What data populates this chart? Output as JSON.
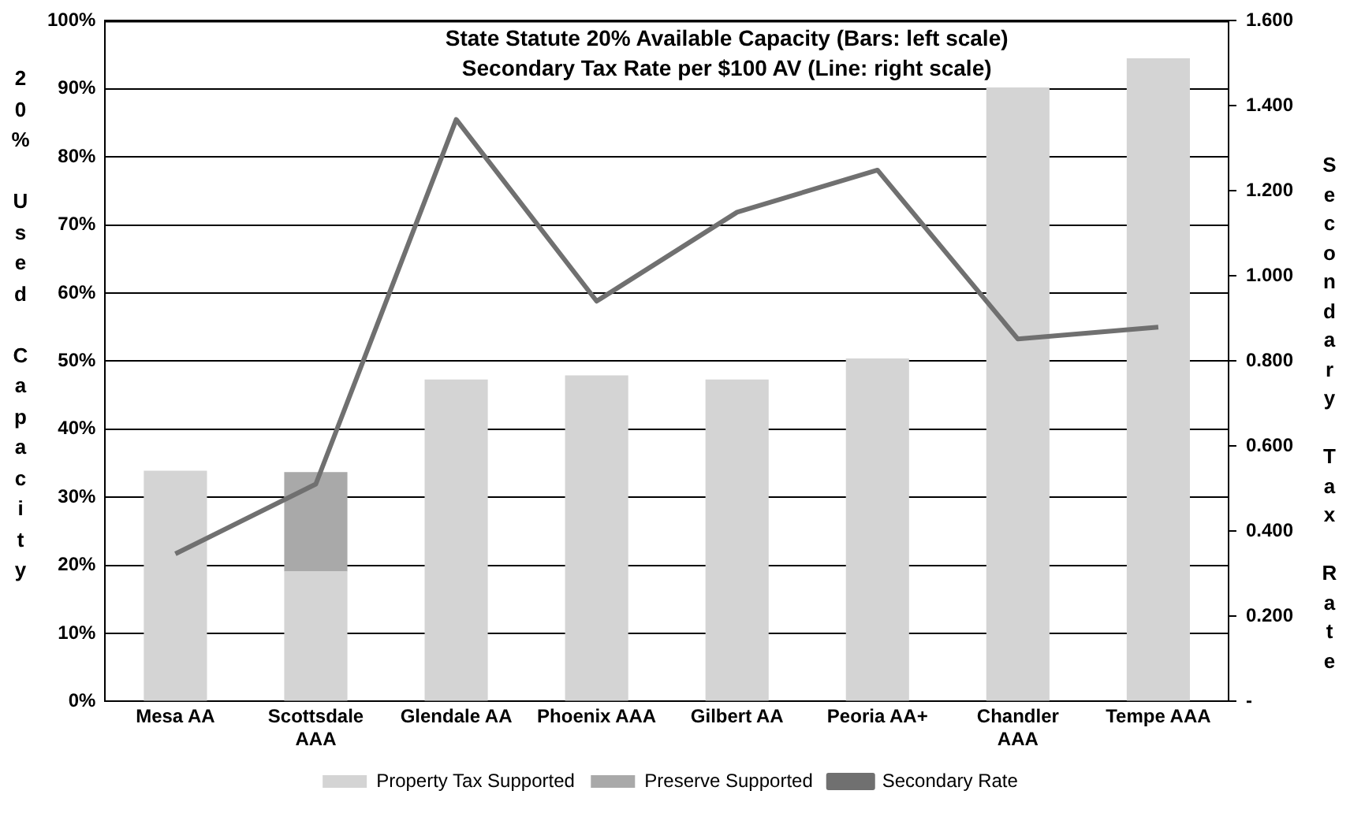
{
  "chart_data": {
    "type": "bar",
    "stacked": true,
    "title": "State Statute 20% Available Capacity (Bars: left scale)",
    "subtitle": "Secondary Tax Rate per $100 AV (Line: right scale)",
    "ylabel": "20% Used Capacity",
    "y2label": "Secondary Tax Rate",
    "categories": [
      "Mesa AA",
      "Scottsdale\nAAA",
      "Glendale AA",
      "Phoenix AAA",
      "Gilbert AA",
      "Peoria AA+",
      "Chandler\nAAA",
      "Tempe AAA"
    ],
    "series": [
      {
        "name": "Property Tax Supported",
        "color": "#d4d4d4",
        "values": [
          33.9,
          19.1,
          47.3,
          47.9,
          47.3,
          50.4,
          90.2,
          94.5
        ]
      },
      {
        "name": "Preserve Supported",
        "color": "#a9a9a9",
        "values": [
          0,
          14.6,
          0,
          0,
          0,
          0,
          0,
          0
        ]
      },
      {
        "name": "Secondary Rate",
        "type": "line",
        "axis": "y2",
        "color": "#707070",
        "values": [
          0.347,
          0.511,
          1.368,
          0.941,
          1.15,
          1.249,
          0.852,
          0.88
        ]
      }
    ],
    "ylim": [
      0,
      100
    ],
    "yticks": [
      {
        "value": 0,
        "label": "0%"
      },
      {
        "value": 10,
        "label": "10%"
      },
      {
        "value": 20,
        "label": "20%"
      },
      {
        "value": 30,
        "label": "30%"
      },
      {
        "value": 40,
        "label": "40%"
      },
      {
        "value": 50,
        "label": "50%"
      },
      {
        "value": 60,
        "label": "60%"
      },
      {
        "value": 70,
        "label": "70%"
      },
      {
        "value": 80,
        "label": "80%"
      },
      {
        "value": 90,
        "label": "90%"
      },
      {
        "value": 100,
        "label": "100%"
      }
    ],
    "y2lim": [
      0,
      1.6
    ],
    "y2ticks": [
      {
        "value": 0,
        "label": "-"
      },
      {
        "value": 0.2,
        "label": "0.200"
      },
      {
        "value": 0.4,
        "label": "0.400"
      },
      {
        "value": 0.6,
        "label": "0.600"
      },
      {
        "value": 0.8,
        "label": "0.800"
      },
      {
        "value": 1,
        "label": "1.000"
      },
      {
        "value": 1.2,
        "label": "1.200"
      },
      {
        "value": 1.4,
        "label": "1.400"
      },
      {
        "value": 1.6,
        "label": "1.600"
      }
    ],
    "grid": "y",
    "legend": "bottom",
    "marker": "none",
    "line_style": "solid"
  }
}
